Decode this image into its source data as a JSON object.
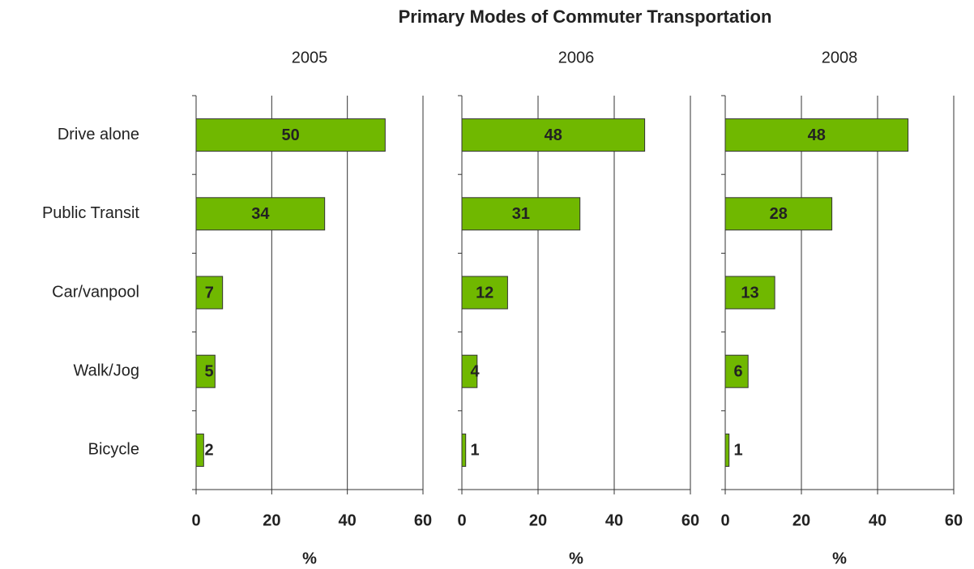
{
  "title": "Primary Modes of Commuter Transportation",
  "categories": [
    "Drive alone",
    "Public Transit",
    "Car/vanpool",
    "Walk/Jog",
    "Bicycle"
  ],
  "chart_data": [
    {
      "type": "bar",
      "title": "2005",
      "values": [
        50,
        34,
        7,
        5,
        2
      ],
      "color": "#70b800",
      "xlim": [
        0,
        60
      ],
      "xticks": [
        0,
        20,
        40,
        60
      ],
      "xlabel": "%",
      "grid": true
    },
    {
      "type": "bar",
      "title": "2006",
      "values": [
        48,
        31,
        12,
        4,
        1
      ],
      "color": "#70b800",
      "xlim": [
        0,
        60
      ],
      "xticks": [
        0,
        20,
        40,
        60
      ],
      "xlabel": "%",
      "grid": true
    },
    {
      "type": "bar",
      "title": "2008",
      "values": [
        48,
        28,
        13,
        6,
        1
      ],
      "color": "#70b800",
      "xlim": [
        0,
        60
      ],
      "xticks": [
        0,
        20,
        40,
        60
      ],
      "xlabel": "%",
      "grid": true
    }
  ]
}
